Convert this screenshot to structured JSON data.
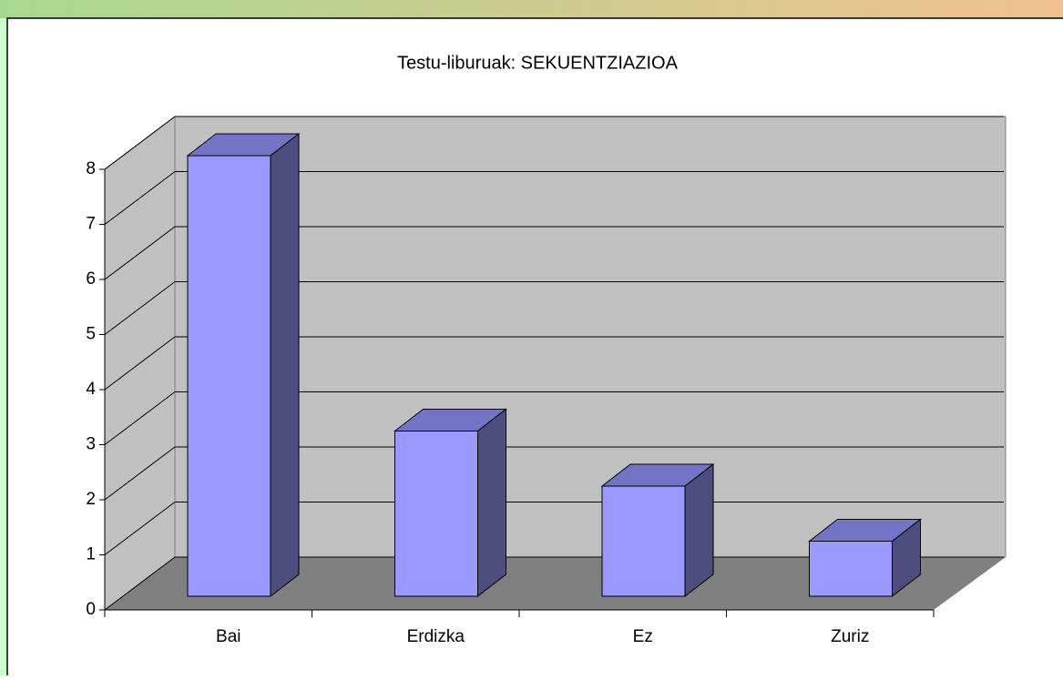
{
  "chart_data": {
    "type": "bar3d",
    "title": "Testu-liburuak: SEKUENTZIAZIOA",
    "categories": [
      "Bai",
      "Erdizka",
      "Ez",
      "Zuriz"
    ],
    "values": [
      8,
      3,
      2,
      1
    ],
    "color": "#9999ff",
    "ylim": [
      0,
      8
    ],
    "yticks": [
      0,
      1,
      2,
      3,
      4,
      5,
      6,
      7,
      8
    ],
    "grid": true
  }
}
